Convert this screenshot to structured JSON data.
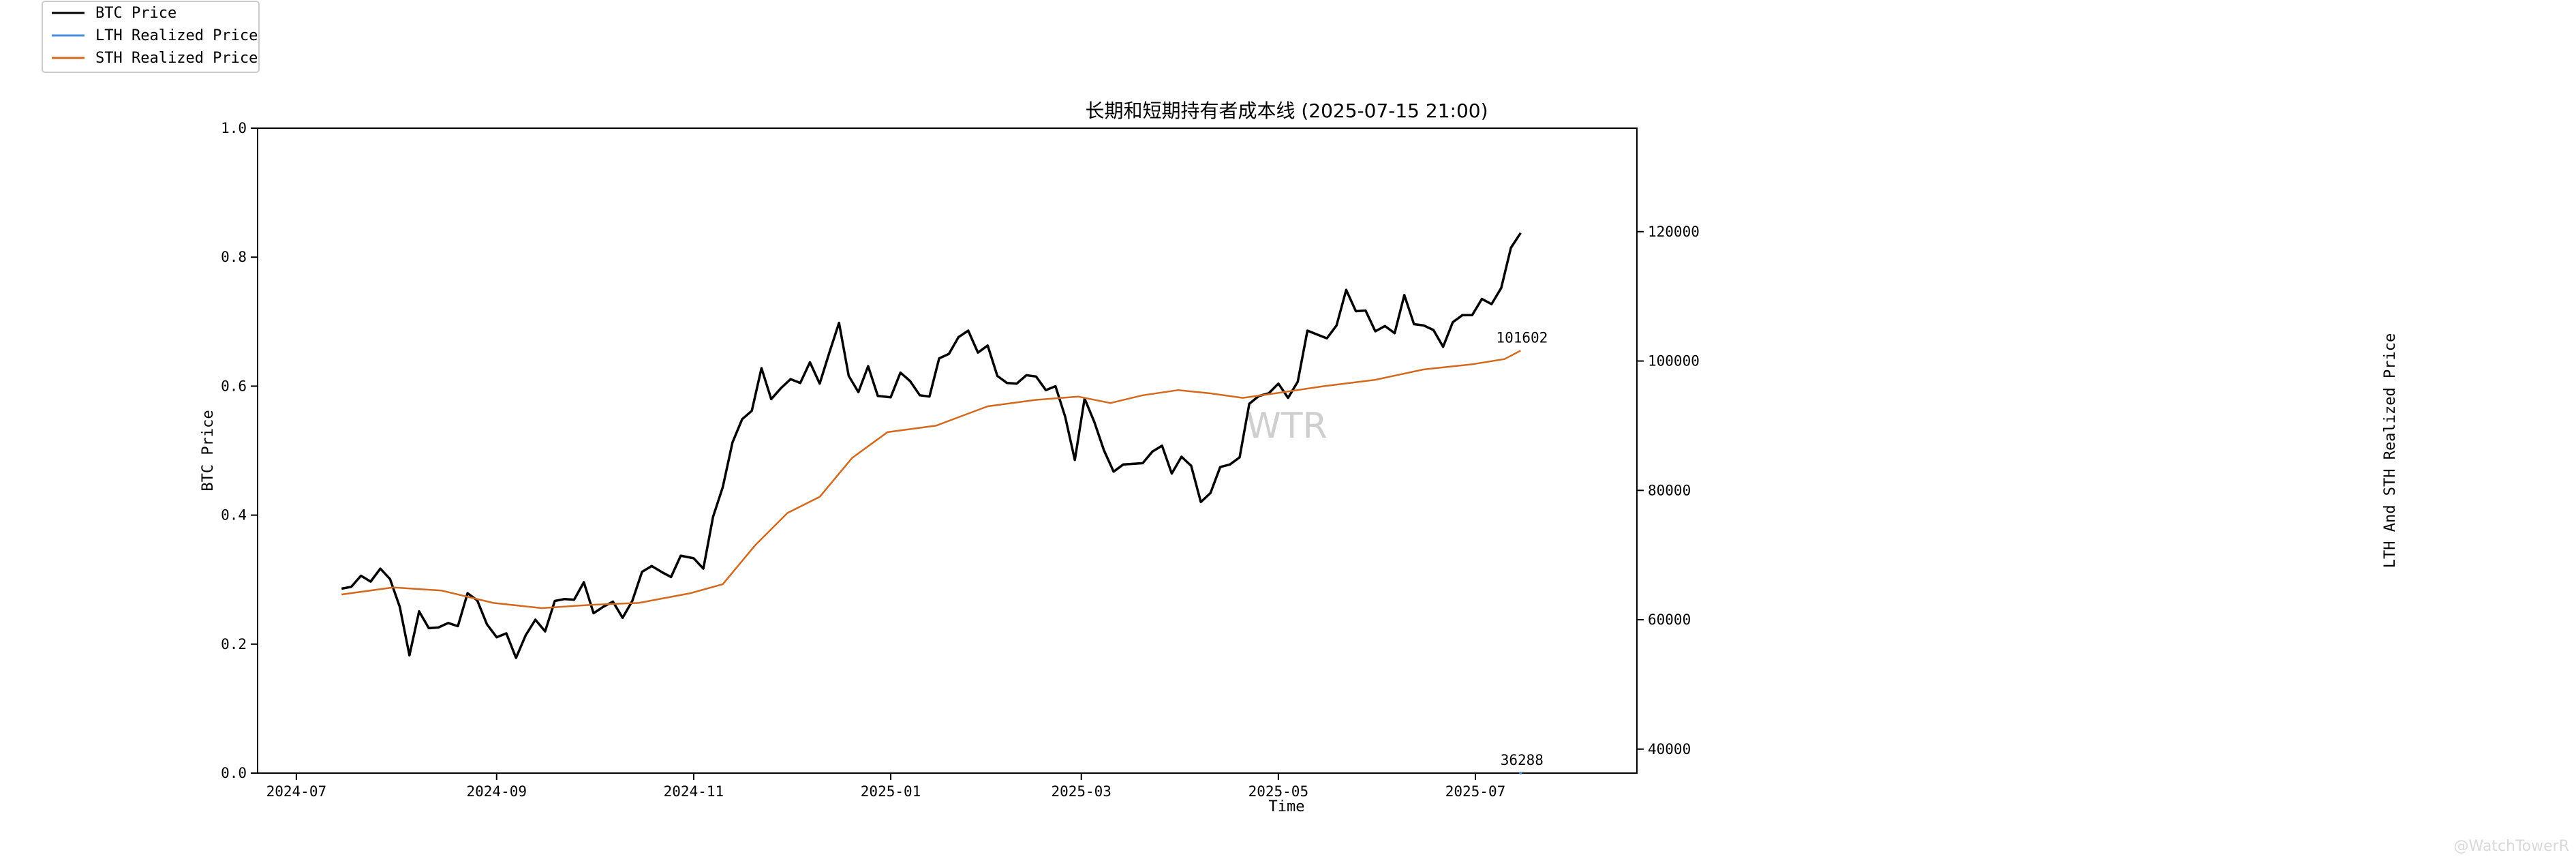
{
  "chart_data": {
    "type": "line",
    "title": "长期和短期持有者成本线 (2025-07-15 21:00)",
    "xlabel": "Time",
    "ylabel_left": "BTC Price",
    "ylabel_right": "LTH And STH Realized Price",
    "left_yticks": [
      "0.0",
      "0.2",
      "0.4",
      "0.6",
      "0.8",
      "1.0"
    ],
    "ylim_left": [
      0,
      1
    ],
    "ylim_right": [
      36288,
      136000
    ],
    "right_yticks": [
      {
        "value": 40000,
        "label": "40000"
      },
      {
        "value": 60000,
        "label": "60000"
      },
      {
        "value": 80000,
        "label": "80000"
      },
      {
        "value": 100000,
        "label": "100000"
      },
      {
        "value": 120000,
        "label": "120000"
      }
    ],
    "xlim": [
      "2024-06-19",
      "2025-08-20"
    ],
    "xticks": [
      "2024-07",
      "2024-09",
      "2024-11",
      "2025-01",
      "2025-03",
      "2025-05",
      "2025-07"
    ],
    "xtick_dates": [
      "2024-07-01",
      "2024-09-01",
      "2024-11-01",
      "2025-01-01",
      "2025-03-01",
      "2025-05-01",
      "2025-07-01"
    ],
    "legend_position": "top-left",
    "watermark": "WTR",
    "annotations": [
      {
        "text": "101602",
        "series": "STH Realized Price",
        "date": "2025-07-15",
        "value": 101602
      },
      {
        "text": "36288",
        "series": "LTH Realized Price",
        "date": "2025-07-15",
        "value": 36288
      }
    ],
    "series": [
      {
        "name": "BTC Price",
        "color": "#000000",
        "points": [
          [
            "2024-07-15",
            64800
          ],
          [
            "2024-07-18",
            65100
          ],
          [
            "2024-07-21",
            66800
          ],
          [
            "2024-07-24",
            65900
          ],
          [
            "2024-07-27",
            67900
          ],
          [
            "2024-07-30",
            66300
          ],
          [
            "2024-08-02",
            62000
          ],
          [
            "2024-08-05",
            54500
          ],
          [
            "2024-08-08",
            61300
          ],
          [
            "2024-08-11",
            58700
          ],
          [
            "2024-08-14",
            58800
          ],
          [
            "2024-08-17",
            59500
          ],
          [
            "2024-08-20",
            59000
          ],
          [
            "2024-08-23",
            64100
          ],
          [
            "2024-08-26",
            63000
          ],
          [
            "2024-08-29",
            59300
          ],
          [
            "2024-09-01",
            57300
          ],
          [
            "2024-09-04",
            57900
          ],
          [
            "2024-09-07",
            54100
          ],
          [
            "2024-09-10",
            57600
          ],
          [
            "2024-09-13",
            60000
          ],
          [
            "2024-09-16",
            58200
          ],
          [
            "2024-09-19",
            62900
          ],
          [
            "2024-09-22",
            63200
          ],
          [
            "2024-09-25",
            63100
          ],
          [
            "2024-09-28",
            65800
          ],
          [
            "2024-10-01",
            61000
          ],
          [
            "2024-10-04",
            62000
          ],
          [
            "2024-10-07",
            62800
          ],
          [
            "2024-10-10",
            60300
          ],
          [
            "2024-10-13",
            62900
          ],
          [
            "2024-10-16",
            67400
          ],
          [
            "2024-10-19",
            68300
          ],
          [
            "2024-10-22",
            67400
          ],
          [
            "2024-10-25",
            66600
          ],
          [
            "2024-10-28",
            69900
          ],
          [
            "2024-11-01",
            69500
          ],
          [
            "2024-11-04",
            67900
          ],
          [
            "2024-11-07",
            75900
          ],
          [
            "2024-11-10",
            80500
          ],
          [
            "2024-11-13",
            87400
          ],
          [
            "2024-11-16",
            91000
          ],
          [
            "2024-11-19",
            92300
          ],
          [
            "2024-11-22",
            98900
          ],
          [
            "2024-11-25",
            94100
          ],
          [
            "2024-11-28",
            95800
          ],
          [
            "2024-12-01",
            97200
          ],
          [
            "2024-12-04",
            96600
          ],
          [
            "2024-12-07",
            99800
          ],
          [
            "2024-12-10",
            96500
          ],
          [
            "2024-12-13",
            101300
          ],
          [
            "2024-12-16",
            105900
          ],
          [
            "2024-12-19",
            97700
          ],
          [
            "2024-12-22",
            95200
          ],
          [
            "2024-12-25",
            99200
          ],
          [
            "2024-12-28",
            94600
          ],
          [
            "2025-01-01",
            94400
          ],
          [
            "2025-01-04",
            98200
          ],
          [
            "2025-01-07",
            96900
          ],
          [
            "2025-01-10",
            94700
          ],
          [
            "2025-01-13",
            94500
          ],
          [
            "2025-01-16",
            100400
          ],
          [
            "2025-01-19",
            101100
          ],
          [
            "2025-01-22",
            103700
          ],
          [
            "2025-01-25",
            104700
          ],
          [
            "2025-01-28",
            101300
          ],
          [
            "2025-01-31",
            102400
          ],
          [
            "2025-02-03",
            97700
          ],
          [
            "2025-02-06",
            96600
          ],
          [
            "2025-02-09",
            96500
          ],
          [
            "2025-02-12",
            97800
          ],
          [
            "2025-02-15",
            97600
          ],
          [
            "2025-02-18",
            95500
          ],
          [
            "2025-02-21",
            96100
          ],
          [
            "2025-02-24",
            91400
          ],
          [
            "2025-02-27",
            84700
          ],
          [
            "2025-03-02",
            94200
          ],
          [
            "2025-03-05",
            90600
          ],
          [
            "2025-03-08",
            86200
          ],
          [
            "2025-03-11",
            82900
          ],
          [
            "2025-03-14",
            84000
          ],
          [
            "2025-03-17",
            84100
          ],
          [
            "2025-03-20",
            84200
          ],
          [
            "2025-03-23",
            86000
          ],
          [
            "2025-03-26",
            86900
          ],
          [
            "2025-03-29",
            82600
          ],
          [
            "2025-04-01",
            85200
          ],
          [
            "2025-04-04",
            83800
          ],
          [
            "2025-04-07",
            78200
          ],
          [
            "2025-04-10",
            79600
          ],
          [
            "2025-04-13",
            83600
          ],
          [
            "2025-04-16",
            84000
          ],
          [
            "2025-04-19",
            85100
          ],
          [
            "2025-04-22",
            93400
          ],
          [
            "2025-04-25",
            94600
          ],
          [
            "2025-04-28",
            95000
          ],
          [
            "2025-05-01",
            96500
          ],
          [
            "2025-05-04",
            94300
          ],
          [
            "2025-05-07",
            96800
          ],
          [
            "2025-05-10",
            104700
          ],
          [
            "2025-05-13",
            104100
          ],
          [
            "2025-05-16",
            103500
          ],
          [
            "2025-05-19",
            105500
          ],
          [
            "2025-05-22",
            111000
          ],
          [
            "2025-05-25",
            107700
          ],
          [
            "2025-05-28",
            107800
          ],
          [
            "2025-05-31",
            104600
          ],
          [
            "2025-06-03",
            105400
          ],
          [
            "2025-06-06",
            104300
          ],
          [
            "2025-06-09",
            110200
          ],
          [
            "2025-06-12",
            105700
          ],
          [
            "2025-06-15",
            105500
          ],
          [
            "2025-06-18",
            104800
          ],
          [
            "2025-06-21",
            102200
          ],
          [
            "2025-06-24",
            106000
          ],
          [
            "2025-06-27",
            107100
          ],
          [
            "2025-06-30",
            107100
          ],
          [
            "2025-07-03",
            109600
          ],
          [
            "2025-07-06",
            108800
          ],
          [
            "2025-07-09",
            111300
          ],
          [
            "2025-07-12",
            117500
          ],
          [
            "2025-07-15",
            119800
          ]
        ]
      },
      {
        "name": "LTH Realized Price",
        "color": "#4a90d9",
        "points": [
          [
            "2025-07-15",
            36288
          ]
        ]
      },
      {
        "name": "STH Realized Price",
        "color": "#d2691e",
        "points": [
          [
            "2024-07-15",
            63900
          ],
          [
            "2024-07-31",
            65000
          ],
          [
            "2024-08-15",
            64500
          ],
          [
            "2024-08-31",
            62600
          ],
          [
            "2024-09-15",
            61800
          ],
          [
            "2024-09-30",
            62300
          ],
          [
            "2024-10-15",
            62600
          ],
          [
            "2024-10-31",
            64100
          ],
          [
            "2024-11-10",
            65500
          ],
          [
            "2024-11-20",
            71500
          ],
          [
            "2024-11-30",
            76500
          ],
          [
            "2024-12-10",
            79000
          ],
          [
            "2024-12-20",
            85000
          ],
          [
            "2024-12-31",
            89000
          ],
          [
            "2025-01-15",
            90000
          ],
          [
            "2025-01-31",
            93000
          ],
          [
            "2025-02-15",
            94000
          ],
          [
            "2025-02-28",
            94500
          ],
          [
            "2025-03-10",
            93500
          ],
          [
            "2025-03-20",
            94700
          ],
          [
            "2025-03-31",
            95500
          ],
          [
            "2025-04-10",
            95000
          ],
          [
            "2025-04-20",
            94300
          ],
          [
            "2025-04-30",
            95000
          ],
          [
            "2025-05-15",
            96100
          ],
          [
            "2025-05-31",
            97100
          ],
          [
            "2025-06-15",
            98700
          ],
          [
            "2025-06-30",
            99500
          ],
          [
            "2025-07-10",
            100300
          ],
          [
            "2025-07-15",
            101602
          ]
        ]
      }
    ]
  },
  "legend": [
    {
      "label": "BTC Price",
      "color": "#000000"
    },
    {
      "label": "LTH Realized Price",
      "color": "#4a90d9"
    },
    {
      "label": "STH Realized Price",
      "color": "#d2691e"
    }
  ],
  "footer_mark": "@WatchTowerR"
}
